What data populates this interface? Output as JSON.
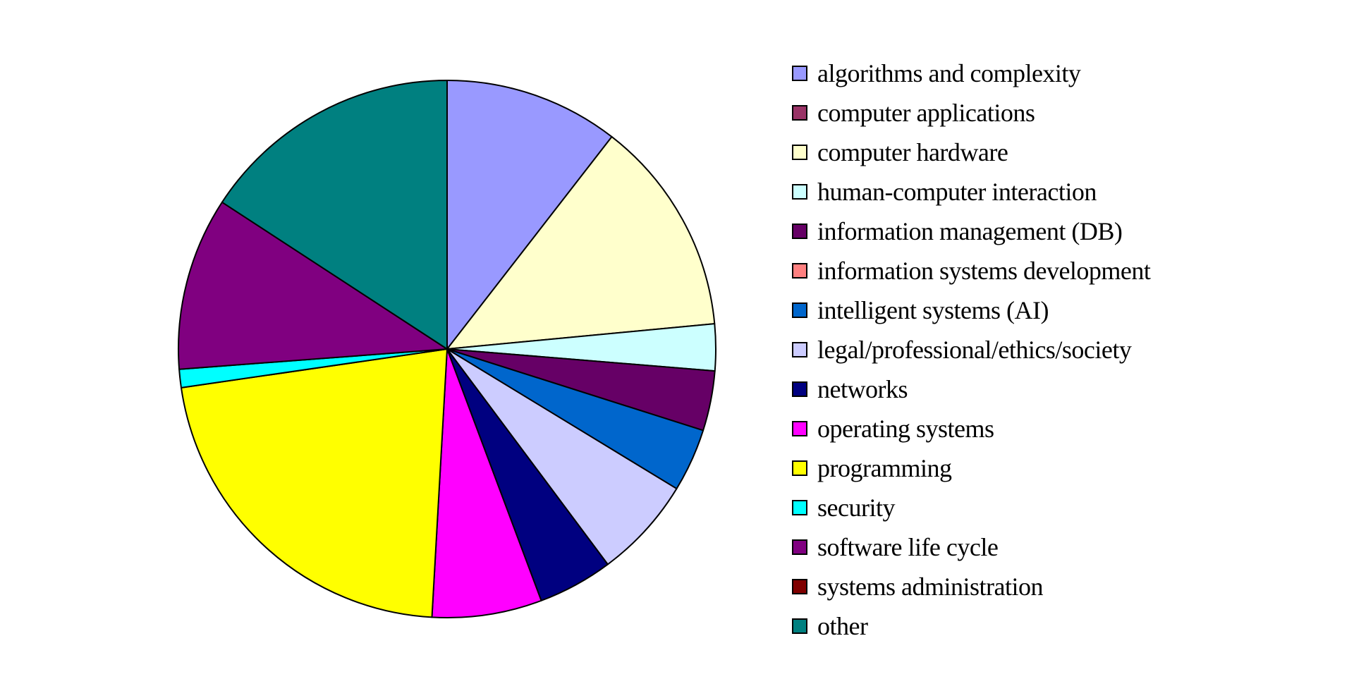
{
  "chart_data": {
    "type": "pie",
    "start_angle_deg": 0,
    "direction": "clockwise",
    "legend_position": "right",
    "slices": [
      {
        "label": "algorithms and complexity",
        "value": 10.5,
        "color": "#9999ff"
      },
      {
        "label": "computer applications",
        "value": 0,
        "color": "#993366"
      },
      {
        "label": "computer hardware",
        "value": 13.0,
        "color": "#ffffcc"
      },
      {
        "label": "human-computer interaction",
        "value": 2.8,
        "color": "#ccffff"
      },
      {
        "label": "information management (DB)",
        "value": 3.6,
        "color": "#660066"
      },
      {
        "label": "information systems development",
        "value": 0,
        "color": "#ff8080"
      },
      {
        "label": "intelligent systems (AI)",
        "value": 3.8,
        "color": "#0066cc"
      },
      {
        "label": "legal/professional/ethics/society",
        "value": 6.1,
        "color": "#ccccff"
      },
      {
        "label": "networks",
        "value": 4.5,
        "color": "#000080"
      },
      {
        "label": "operating systems",
        "value": 6.6,
        "color": "#ff00ff"
      },
      {
        "label": "programming",
        "value": 21.8,
        "color": "#ffff00"
      },
      {
        "label": "security",
        "value": 1.1,
        "color": "#00ffff"
      },
      {
        "label": "software life cycle",
        "value": 10.4,
        "color": "#800080"
      },
      {
        "label": "systems administration",
        "value": 0,
        "color": "#800000"
      },
      {
        "label": "other",
        "value": 15.8,
        "color": "#008080"
      }
    ]
  }
}
